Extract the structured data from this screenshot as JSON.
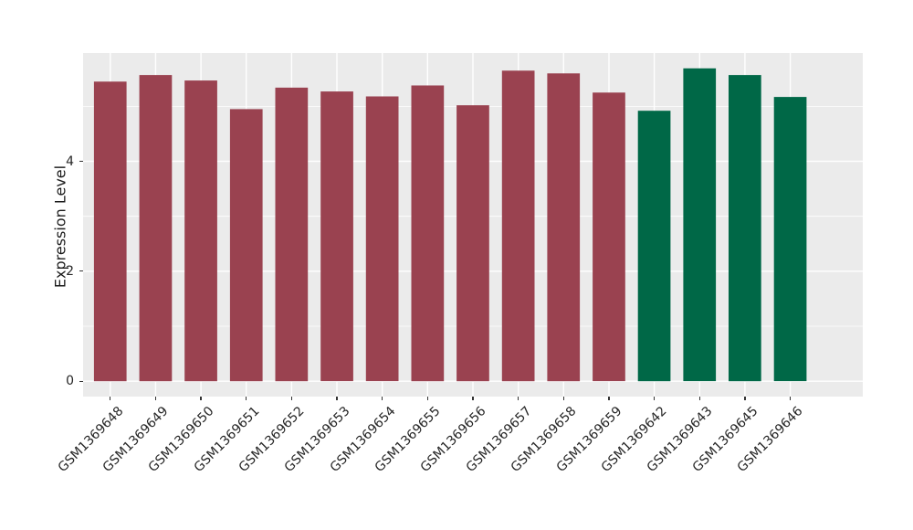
{
  "chart_data": {
    "type": "bar",
    "title": "",
    "xlabel": "",
    "ylabel": "Expression Level",
    "categories": [
      "GSM1369648",
      "GSM1369649",
      "GSM1369650",
      "GSM1369651",
      "GSM1369652",
      "GSM1369653",
      "GSM1369654",
      "GSM1369655",
      "GSM1369656",
      "GSM1369657",
      "GSM1369658",
      "GSM1369659",
      "GSM1369642",
      "GSM1369643",
      "GSM1369645",
      "GSM1369646"
    ],
    "values": [
      5.45,
      5.57,
      5.47,
      4.95,
      5.34,
      5.27,
      5.18,
      5.38,
      5.02,
      5.65,
      5.6,
      5.25,
      4.92,
      5.69,
      5.57,
      5.17
    ],
    "bar_colors": [
      "#9A4250",
      "#9A4250",
      "#9A4250",
      "#9A4250",
      "#9A4250",
      "#9A4250",
      "#9A4250",
      "#9A4250",
      "#9A4250",
      "#9A4250",
      "#9A4250",
      "#9A4250",
      "#006847",
      "#006847",
      "#006847",
      "#006847"
    ],
    "palette": {
      "maroon": "#9A4250",
      "green": "#006847"
    },
    "group_sizes": {
      "maroon": 12,
      "green": 4
    },
    "bar_base": 0,
    "yticks": [
      {
        "label": "0",
        "value": 0
      },
      {
        "label": "2",
        "value": 2
      },
      {
        "label": "4",
        "value": 4
      }
    ],
    "yticks_minor": [
      1,
      3,
      5
    ],
    "ylim": [
      -0.28,
      5.97
    ],
    "legend": "none",
    "grid": "white major and minor gridlines on gray panel",
    "style": {
      "background": "#FFFFFF",
      "panel_bg": "#EBEBEB",
      "grid_color": "#FFFFFF",
      "tick_color": "#333333",
      "text_color": "#262626"
    }
  }
}
